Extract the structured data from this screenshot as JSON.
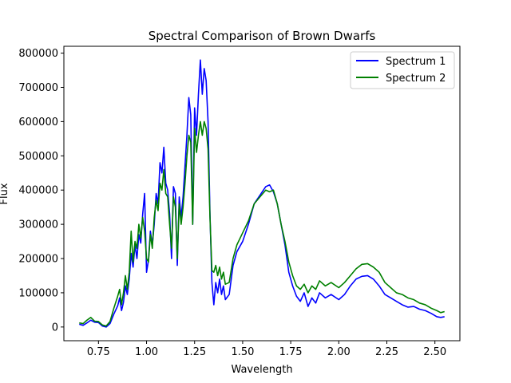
{
  "chart_data": {
    "type": "line",
    "title": "Spectral Comparison of Brown Dwarfs",
    "xlabel": "Wavelength",
    "ylabel": "Flux",
    "xlim": [
      0.57,
      2.63
    ],
    "ylim": [
      -40000,
      820000
    ],
    "xticks": [
      0.75,
      1.0,
      1.25,
      1.5,
      1.75,
      2.0,
      2.25,
      2.5
    ],
    "xtick_labels": [
      "0.75",
      "1.00",
      "1.25",
      "1.50",
      "1.75",
      "2.00",
      "2.25",
      "2.50"
    ],
    "yticks": [
      0,
      100000,
      200000,
      300000,
      400000,
      500000,
      600000,
      700000,
      800000
    ],
    "ytick_labels": [
      "0",
      "100000",
      "200000",
      "300000",
      "400000",
      "500000",
      "600000",
      "700000",
      "800000"
    ],
    "grid": false,
    "legend_position": "top-right",
    "series": [
      {
        "name": "Spectrum 1",
        "color": "#0000ff",
        "points": [
          [
            0.65,
            8000
          ],
          [
            0.67,
            5000
          ],
          [
            0.69,
            12000
          ],
          [
            0.71,
            20000
          ],
          [
            0.73,
            14000
          ],
          [
            0.75,
            13000
          ],
          [
            0.77,
            3000
          ],
          [
            0.79,
            0
          ],
          [
            0.81,
            10000
          ],
          [
            0.83,
            38000
          ],
          [
            0.85,
            62000
          ],
          [
            0.86,
            85000
          ],
          [
            0.87,
            48000
          ],
          [
            0.88,
            72000
          ],
          [
            0.89,
            120000
          ],
          [
            0.9,
            95000
          ],
          [
            0.91,
            140000
          ],
          [
            0.92,
            215000
          ],
          [
            0.93,
            175000
          ],
          [
            0.94,
            240000
          ],
          [
            0.95,
            200000
          ],
          [
            0.96,
            270000
          ],
          [
            0.97,
            245000
          ],
          [
            0.98,
            330000
          ],
          [
            0.99,
            390000
          ],
          [
            1.0,
            160000
          ],
          [
            1.01,
            195000
          ],
          [
            1.02,
            280000
          ],
          [
            1.03,
            240000
          ],
          [
            1.04,
            300000
          ],
          [
            1.05,
            390000
          ],
          [
            1.06,
            360000
          ],
          [
            1.07,
            480000
          ],
          [
            1.08,
            450000
          ],
          [
            1.09,
            525000
          ],
          [
            1.1,
            420000
          ],
          [
            1.11,
            400000
          ],
          [
            1.12,
            330000
          ],
          [
            1.13,
            200000
          ],
          [
            1.14,
            410000
          ],
          [
            1.15,
            390000
          ],
          [
            1.16,
            180000
          ],
          [
            1.17,
            380000
          ],
          [
            1.18,
            320000
          ],
          [
            1.19,
            380000
          ],
          [
            1.2,
            470000
          ],
          [
            1.21,
            560000
          ],
          [
            1.22,
            670000
          ],
          [
            1.23,
            620000
          ],
          [
            1.24,
            300000
          ],
          [
            1.25,
            640000
          ],
          [
            1.26,
            560000
          ],
          [
            1.27,
            680000
          ],
          [
            1.28,
            780000
          ],
          [
            1.29,
            680000
          ],
          [
            1.3,
            755000
          ],
          [
            1.31,
            720000
          ],
          [
            1.32,
            600000
          ],
          [
            1.33,
            330000
          ],
          [
            1.34,
            130000
          ],
          [
            1.35,
            65000
          ],
          [
            1.36,
            130000
          ],
          [
            1.37,
            100000
          ],
          [
            1.38,
            140000
          ],
          [
            1.39,
            95000
          ],
          [
            1.4,
            120000
          ],
          [
            1.41,
            80000
          ],
          [
            1.43,
            95000
          ],
          [
            1.45,
            180000
          ],
          [
            1.47,
            220000
          ],
          [
            1.5,
            250000
          ],
          [
            1.53,
            300000
          ],
          [
            1.56,
            360000
          ],
          [
            1.59,
            385000
          ],
          [
            1.62,
            410000
          ],
          [
            1.64,
            415000
          ],
          [
            1.66,
            395000
          ],
          [
            1.68,
            360000
          ],
          [
            1.7,
            300000
          ],
          [
            1.72,
            240000
          ],
          [
            1.73,
            200000
          ],
          [
            1.74,
            160000
          ],
          [
            1.76,
            120000
          ],
          [
            1.78,
            90000
          ],
          [
            1.8,
            75000
          ],
          [
            1.82,
            100000
          ],
          [
            1.84,
            60000
          ],
          [
            1.86,
            85000
          ],
          [
            1.88,
            70000
          ],
          [
            1.9,
            100000
          ],
          [
            1.93,
            85000
          ],
          [
            1.96,
            95000
          ],
          [
            2.0,
            80000
          ],
          [
            2.03,
            95000
          ],
          [
            2.06,
            120000
          ],
          [
            2.09,
            140000
          ],
          [
            2.12,
            148000
          ],
          [
            2.15,
            150000
          ],
          [
            2.18,
            140000
          ],
          [
            2.21,
            120000
          ],
          [
            2.24,
            95000
          ],
          [
            2.27,
            85000
          ],
          [
            2.3,
            75000
          ],
          [
            2.33,
            65000
          ],
          [
            2.36,
            58000
          ],
          [
            2.39,
            60000
          ],
          [
            2.42,
            52000
          ],
          [
            2.45,
            48000
          ],
          [
            2.48,
            40000
          ],
          [
            2.51,
            30000
          ],
          [
            2.53,
            28000
          ],
          [
            2.55,
            30000
          ]
        ]
      },
      {
        "name": "Spectrum 2",
        "color": "#008000",
        "points": [
          [
            0.65,
            12000
          ],
          [
            0.67,
            10000
          ],
          [
            0.69,
            20000
          ],
          [
            0.71,
            28000
          ],
          [
            0.73,
            17000
          ],
          [
            0.75,
            16000
          ],
          [
            0.77,
            6000
          ],
          [
            0.79,
            3000
          ],
          [
            0.81,
            16000
          ],
          [
            0.83,
            55000
          ],
          [
            0.85,
            90000
          ],
          [
            0.86,
            110000
          ],
          [
            0.87,
            65000
          ],
          [
            0.88,
            100000
          ],
          [
            0.89,
            150000
          ],
          [
            0.9,
            110000
          ],
          [
            0.91,
            160000
          ],
          [
            0.92,
            280000
          ],
          [
            0.93,
            190000
          ],
          [
            0.94,
            250000
          ],
          [
            0.95,
            230000
          ],
          [
            0.96,
            300000
          ],
          [
            0.97,
            260000
          ],
          [
            0.98,
            320000
          ],
          [
            0.99,
            280000
          ],
          [
            1.0,
            200000
          ],
          [
            1.01,
            190000
          ],
          [
            1.02,
            270000
          ],
          [
            1.03,
            230000
          ],
          [
            1.04,
            320000
          ],
          [
            1.05,
            370000
          ],
          [
            1.06,
            340000
          ],
          [
            1.07,
            420000
          ],
          [
            1.08,
            400000
          ],
          [
            1.09,
            460000
          ],
          [
            1.1,
            390000
          ],
          [
            1.11,
            380000
          ],
          [
            1.12,
            300000
          ],
          [
            1.13,
            230000
          ],
          [
            1.14,
            380000
          ],
          [
            1.15,
            350000
          ],
          [
            1.16,
            200000
          ],
          [
            1.17,
            360000
          ],
          [
            1.18,
            300000
          ],
          [
            1.19,
            350000
          ],
          [
            1.2,
            420000
          ],
          [
            1.21,
            500000
          ],
          [
            1.22,
            560000
          ],
          [
            1.23,
            540000
          ],
          [
            1.24,
            300000
          ],
          [
            1.25,
            580000
          ],
          [
            1.26,
            510000
          ],
          [
            1.27,
            560000
          ],
          [
            1.28,
            600000
          ],
          [
            1.29,
            560000
          ],
          [
            1.3,
            600000
          ],
          [
            1.31,
            580000
          ],
          [
            1.32,
            520000
          ],
          [
            1.33,
            320000
          ],
          [
            1.34,
            165000
          ],
          [
            1.35,
            160000
          ],
          [
            1.36,
            180000
          ],
          [
            1.37,
            150000
          ],
          [
            1.38,
            175000
          ],
          [
            1.39,
            140000
          ],
          [
            1.4,
            160000
          ],
          [
            1.41,
            125000
          ],
          [
            1.43,
            130000
          ],
          [
            1.45,
            200000
          ],
          [
            1.47,
            240000
          ],
          [
            1.5,
            275000
          ],
          [
            1.53,
            310000
          ],
          [
            1.56,
            360000
          ],
          [
            1.59,
            380000
          ],
          [
            1.62,
            400000
          ],
          [
            1.64,
            395000
          ],
          [
            1.66,
            400000
          ],
          [
            1.68,
            360000
          ],
          [
            1.7,
            300000
          ],
          [
            1.72,
            250000
          ],
          [
            1.73,
            220000
          ],
          [
            1.74,
            190000
          ],
          [
            1.76,
            150000
          ],
          [
            1.78,
            120000
          ],
          [
            1.8,
            110000
          ],
          [
            1.82,
            125000
          ],
          [
            1.84,
            100000
          ],
          [
            1.86,
            120000
          ],
          [
            1.88,
            110000
          ],
          [
            1.9,
            135000
          ],
          [
            1.93,
            120000
          ],
          [
            1.96,
            130000
          ],
          [
            2.0,
            115000
          ],
          [
            2.03,
            130000
          ],
          [
            2.06,
            150000
          ],
          [
            2.09,
            170000
          ],
          [
            2.12,
            183000
          ],
          [
            2.15,
            185000
          ],
          [
            2.18,
            175000
          ],
          [
            2.21,
            160000
          ],
          [
            2.24,
            130000
          ],
          [
            2.27,
            115000
          ],
          [
            2.3,
            100000
          ],
          [
            2.33,
            95000
          ],
          [
            2.36,
            85000
          ],
          [
            2.39,
            80000
          ],
          [
            2.42,
            70000
          ],
          [
            2.45,
            65000
          ],
          [
            2.48,
            55000
          ],
          [
            2.51,
            48000
          ],
          [
            2.53,
            42000
          ],
          [
            2.55,
            45000
          ]
        ]
      }
    ]
  }
}
